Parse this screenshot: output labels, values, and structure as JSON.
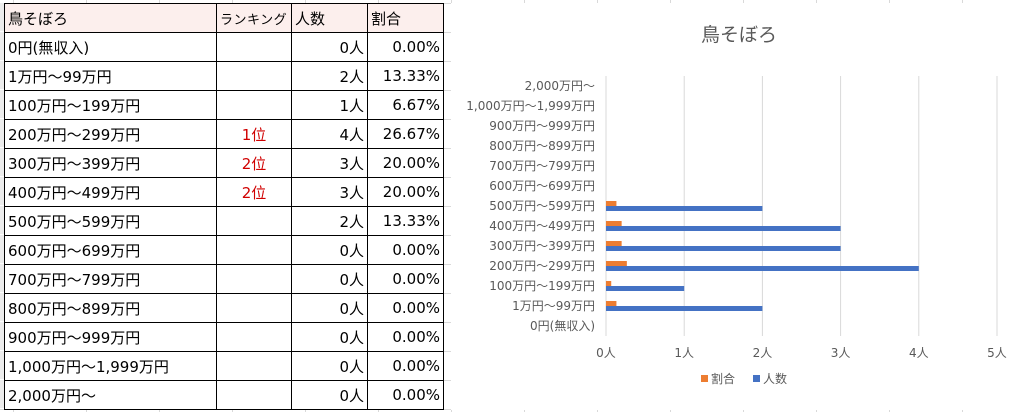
{
  "table": {
    "headers": {
      "label": "鳥そぼろ",
      "rank": "ランキング",
      "count": "人数",
      "pct": "割合"
    },
    "rows": [
      {
        "label": "0円(無収入)",
        "rank": "",
        "count": "0人",
        "pct": "0.00%"
      },
      {
        "label": "1万円～99万円",
        "rank": "",
        "count": "2人",
        "pct": "13.33%"
      },
      {
        "label": "100万円～199万円",
        "rank": "",
        "count": "1人",
        "pct": "6.67%"
      },
      {
        "label": "200万円～299万円",
        "rank": "1位",
        "count": "4人",
        "pct": "26.67%"
      },
      {
        "label": "300万円～399万円",
        "rank": "2位",
        "count": "3人",
        "pct": "20.00%"
      },
      {
        "label": "400万円～499万円",
        "rank": "2位",
        "count": "3人",
        "pct": "20.00%"
      },
      {
        "label": "500万円～599万円",
        "rank": "",
        "count": "2人",
        "pct": "13.33%"
      },
      {
        "label": "600万円～699万円",
        "rank": "",
        "count": "0人",
        "pct": "0.00%"
      },
      {
        "label": "700万円～799万円",
        "rank": "",
        "count": "0人",
        "pct": "0.00%"
      },
      {
        "label": "800万円～899万円",
        "rank": "",
        "count": "0人",
        "pct": "0.00%"
      },
      {
        "label": "900万円～999万円",
        "rank": "",
        "count": "0人",
        "pct": "0.00%"
      },
      {
        "label": "1,000万円～1,999万円",
        "rank": "",
        "count": "0人",
        "pct": "0.00%"
      },
      {
        "label": "2,000万円～",
        "rank": "",
        "count": "0人",
        "pct": "0.00%"
      }
    ]
  },
  "chart_data": {
    "type": "bar",
    "orientation": "horizontal",
    "title": "鳥そぼろ",
    "categories": [
      "0円(無収入)",
      "1万円～99万円",
      "100万円～199万円",
      "200万円～299万円",
      "300万円～399万円",
      "400万円～499万円",
      "500万円～599万円",
      "600万円～699万円",
      "700万円～799万円",
      "800万円～899万円",
      "900万円～999万円",
      "1,000万円～1,999万円",
      "2,000万円～"
    ],
    "series": [
      {
        "name": "人数",
        "color": "#4472c4",
        "values": [
          0,
          2,
          1,
          4,
          3,
          3,
          2,
          0,
          0,
          0,
          0,
          0,
          0
        ]
      },
      {
        "name": "割合",
        "color": "#ed7d31",
        "values": [
          0,
          0.1333,
          0.0667,
          0.2667,
          0.2,
          0.2,
          0.1333,
          0,
          0,
          0,
          0,
          0,
          0
        ]
      }
    ],
    "xlim": [
      0,
      5
    ],
    "xticks": [
      "0人",
      "1人",
      "2人",
      "3人",
      "4人",
      "5人"
    ],
    "legend_order": [
      "割合",
      "人数"
    ],
    "legend_position": "bottom",
    "grid": true
  }
}
